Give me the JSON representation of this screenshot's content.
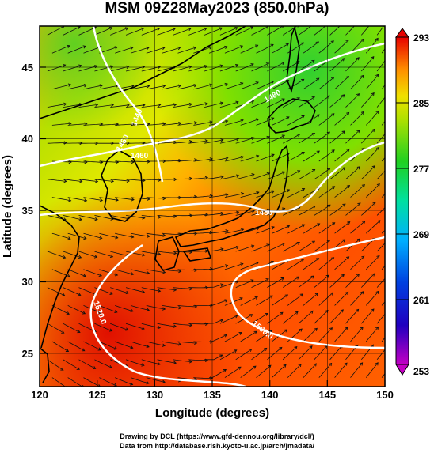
{
  "title": "MSM 09Z28May2023 (850.0hPa)",
  "map": {
    "x_axis_label": "Longitude (degrees)",
    "y_axis_label": "Latitude (degrees)",
    "lon_range": [
      120,
      150
    ],
    "lat_range": [
      22.4,
      47.6
    ],
    "lon_ticks": [
      "120",
      "125",
      "130",
      "135",
      "140",
      "145",
      "150"
    ],
    "lat_ticks": [
      "25",
      "30",
      "35",
      "40",
      "45"
    ],
    "grid": true,
    "contour_labels": [
      "1440",
      "1460",
      "1460",
      "1480",
      "1480",
      "1520.0",
      "1500.0"
    ]
  },
  "colorbar": {
    "labels": [
      "293",
      "285",
      "277",
      "269",
      "261",
      "253"
    ],
    "min": 253,
    "max": 293,
    "colors": [
      "#c400c4",
      "#0000cc",
      "#00a0ff",
      "#00e0a0",
      "#20d020",
      "#a0e000",
      "#e8e800",
      "#ffa000",
      "#ff5000",
      "#e80000"
    ]
  },
  "credits": {
    "line1": "Drawing by DCL (https://www.gfd-dennou.org/library/dcl/)",
    "line2": "Data from http://database.rish.kyoto-u.ac.jp/arch/jmadata/"
  }
}
